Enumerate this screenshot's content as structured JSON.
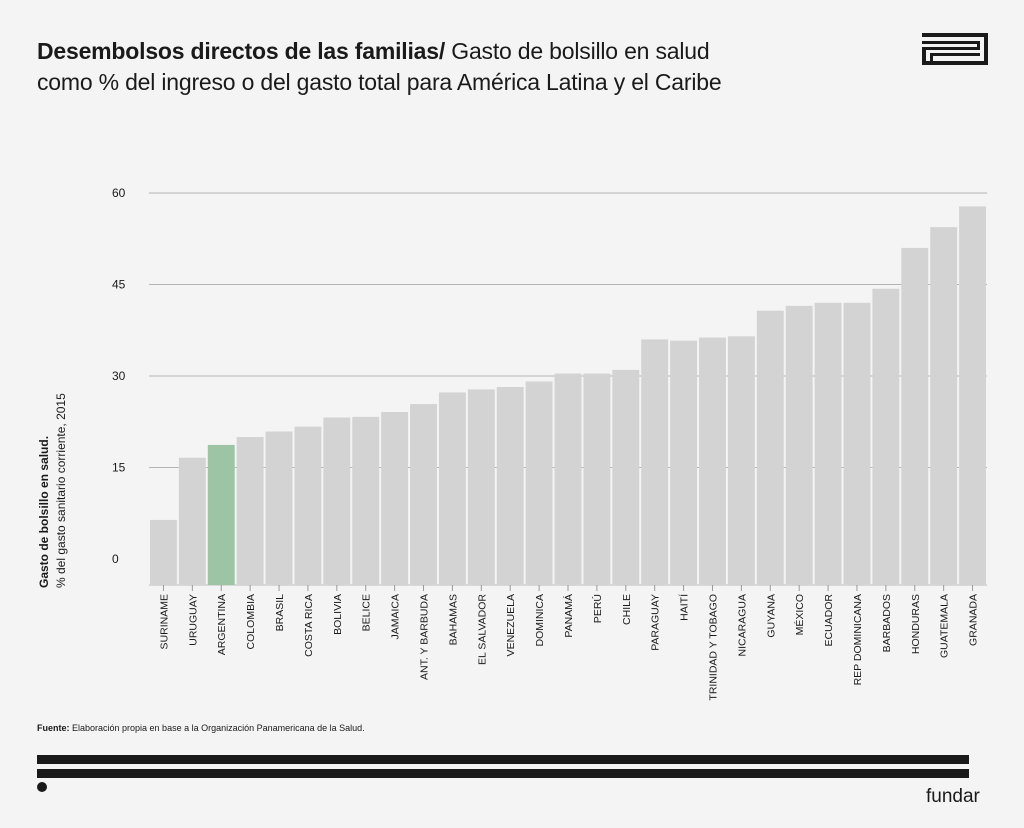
{
  "header": {
    "title_bold": "Desembolsos directos de las familias/",
    "title_rest": " Gasto de bolsillo en salud",
    "title_line2": "como % del ingreso o del gasto total para América Latina y el Caribe"
  },
  "footer": {
    "source_label": "Fuente:",
    "source_text": " Elaboración propia en base a la Organización Panamericana de la Salud.",
    "brand": "fundar"
  },
  "colors": {
    "bar": "#d3d3d3",
    "highlight": "#9ec4a6",
    "grid": "#b5b5b5",
    "text": "#1a1a1a"
  },
  "chart_data": {
    "type": "bar",
    "ylabel_bold": "Gasto de bolsillo en salud.",
    "ylabel": "% del gasto sanitario corriente, 2015",
    "yticks": [
      0,
      15,
      30,
      45,
      60
    ],
    "ylim": [
      0,
      60
    ],
    "grid": true,
    "highlight": "ARGENTINA",
    "categories": [
      "SURINAME",
      "URUGUAY",
      "ARGENTINA",
      "COLOMBIA",
      "BRASIL",
      "COSTA RICA",
      "BOLIVIA",
      "BELICE",
      "JAMAICA",
      "ANT. Y BARBUDA",
      "BAHAMAS",
      "EL SALVADOR",
      "VENEZUELA",
      "DOMINICA",
      "PANAMÁ",
      "PERÚ",
      "CHILE",
      "PARAGUAY",
      "HAITÍ",
      "TRINIDAD Y TOBAGO",
      "NICARAGUA",
      "GUYANA",
      "MÉXICO",
      "ECUADOR",
      "REP DOMINICANA",
      "BARBADOS",
      "HONDURAS",
      "GUATEMALA",
      "GRANADA"
    ],
    "values": [
      6.4,
      16.6,
      18.7,
      20.0,
      20.9,
      21.7,
      23.2,
      23.3,
      24.1,
      25.4,
      27.3,
      27.8,
      28.2,
      29.1,
      30.4,
      30.4,
      31.0,
      36.0,
      35.8,
      36.3,
      36.5,
      40.7,
      41.5,
      42.0,
      42.0,
      44.3,
      51.0,
      54.4,
      57.8
    ]
  }
}
